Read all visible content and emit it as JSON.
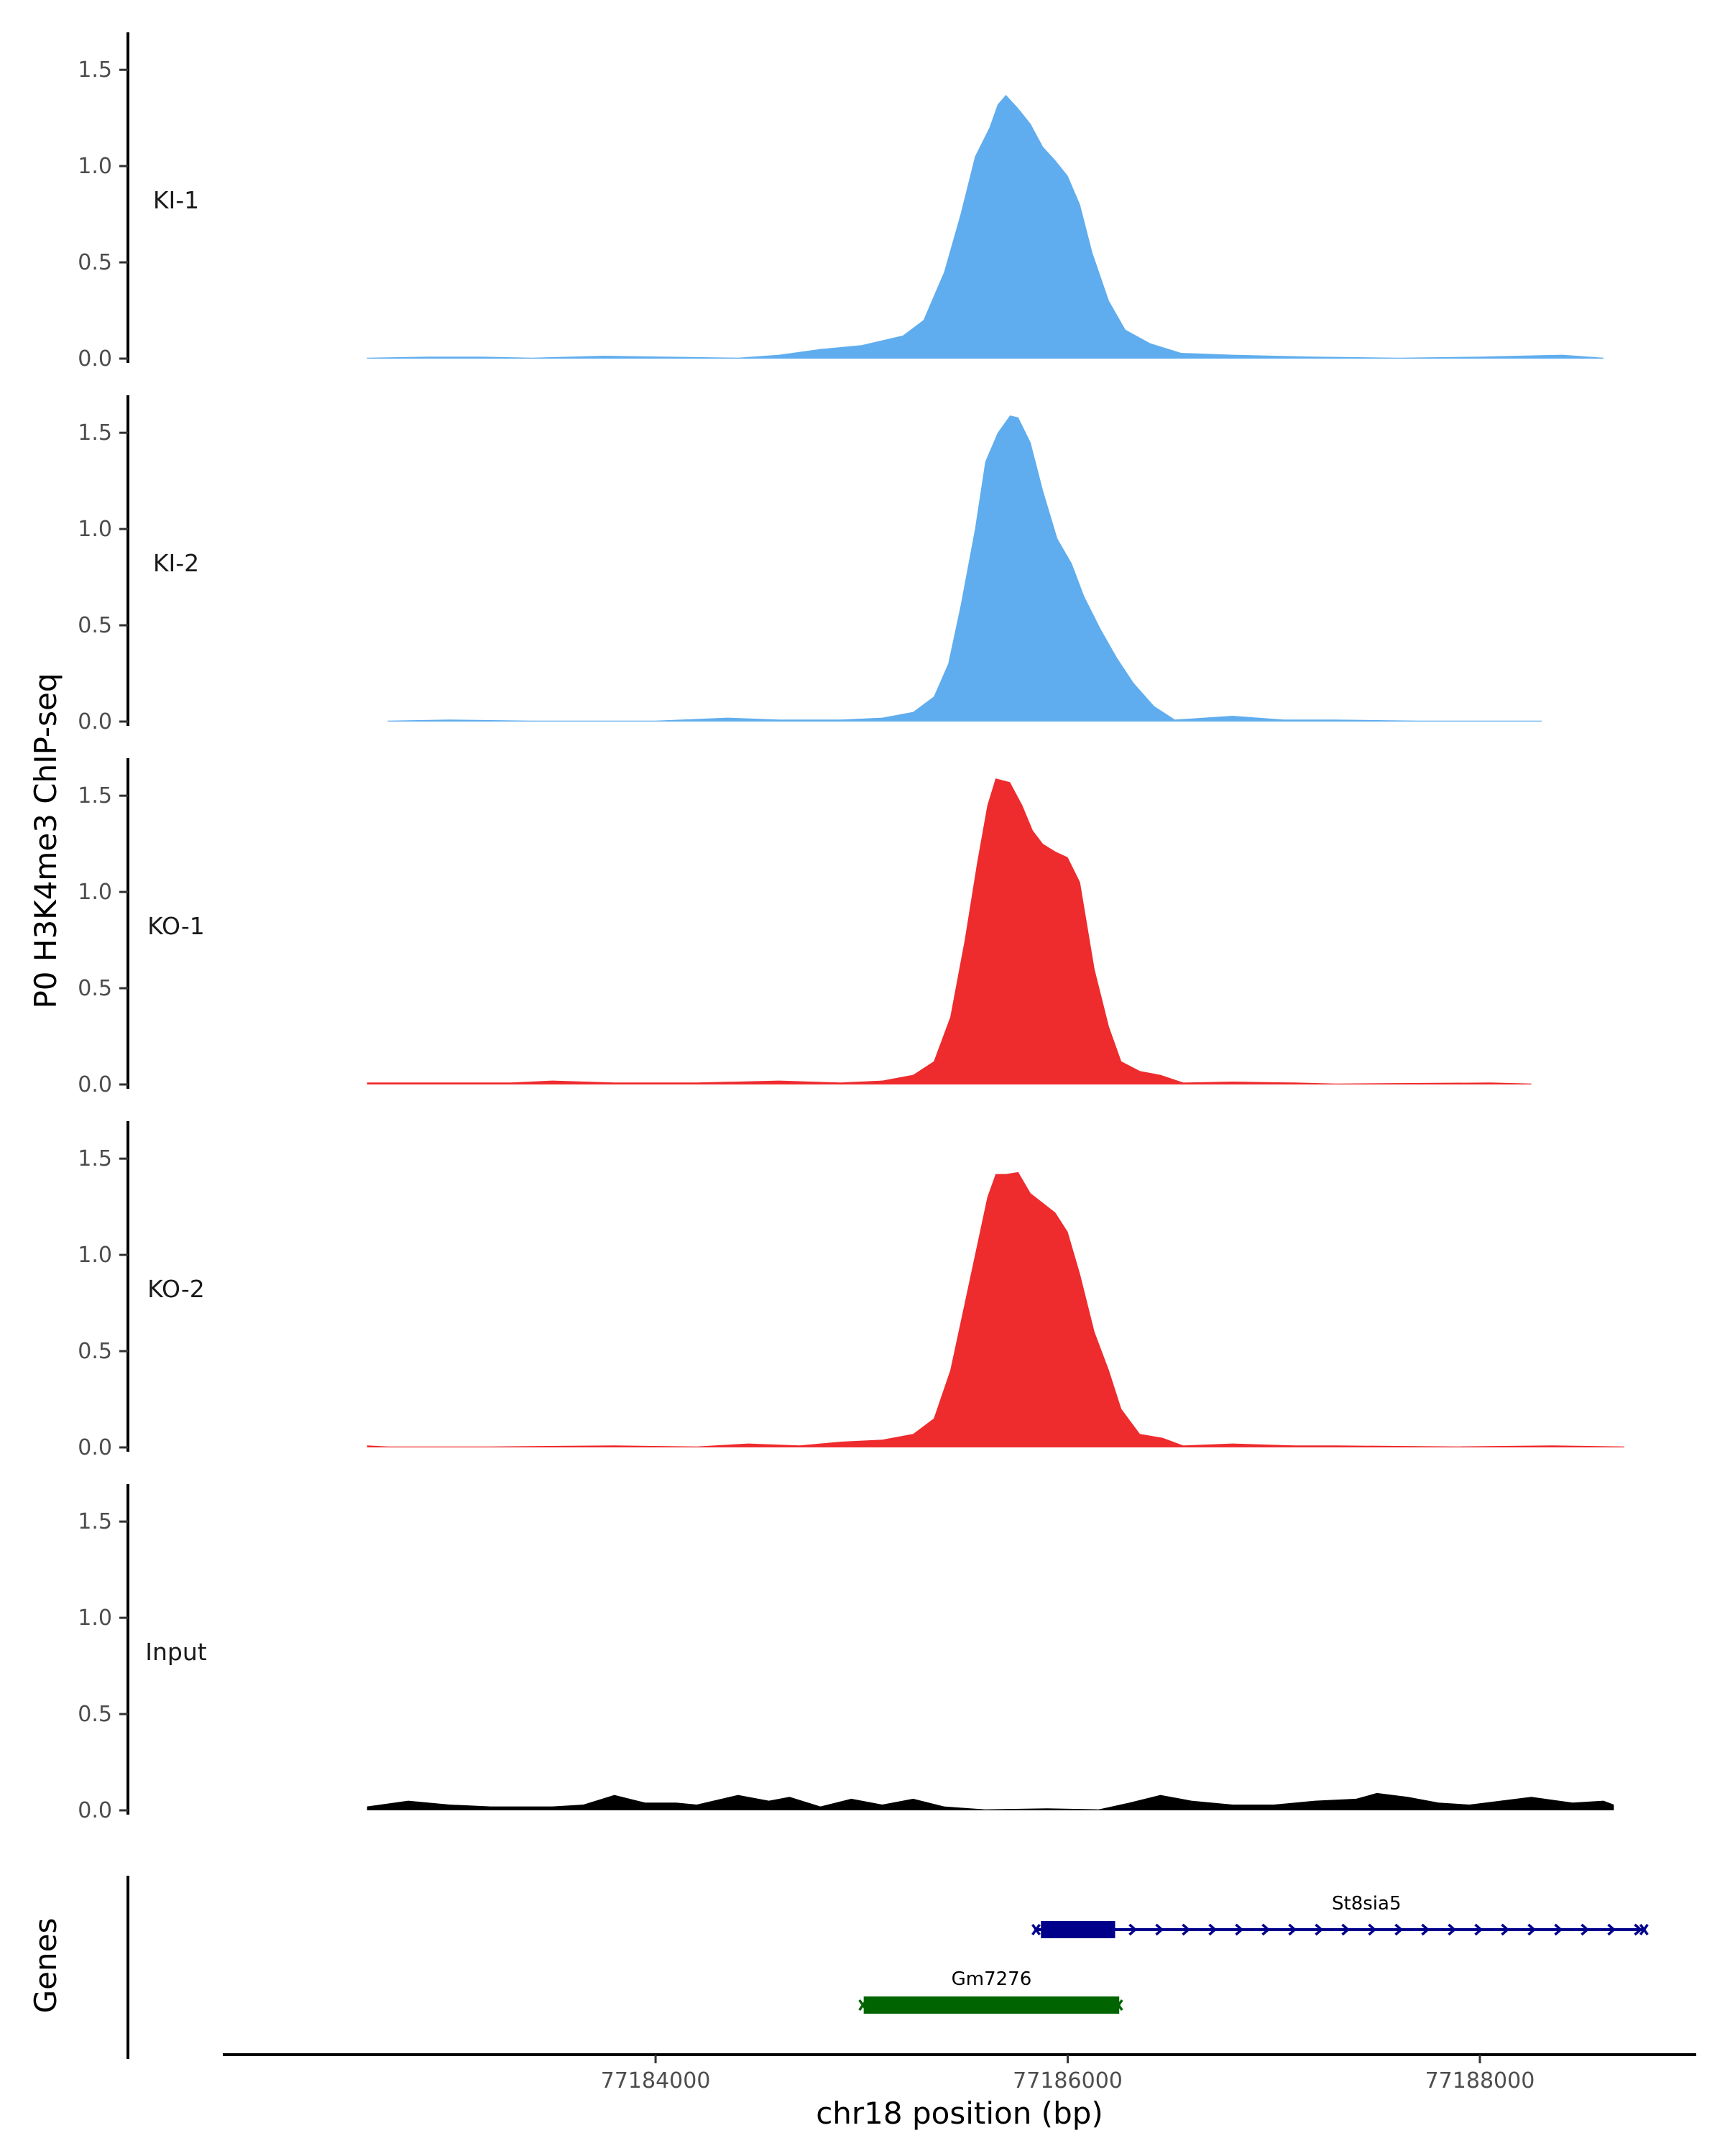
{
  "chart_data": {
    "type": "area",
    "y_title": "P0 H3K4me3 ChIP-seq",
    "x_title": "chr18 position (bp)",
    "genes_title": "Genes",
    "xlim": [
      77181900,
      77189050
    ],
    "ylim": [
      0,
      1.65
    ],
    "y_ticks": [
      0,
      0.5,
      1,
      1.5
    ],
    "y_tick_labels": [
      "0.0",
      "0.5",
      "1.0",
      "1.5"
    ],
    "x_ticks": [
      77184000,
      77186000,
      77188000
    ],
    "x_tick_labels": [
      "77184000",
      "77186000",
      "77188000"
    ],
    "colors": {
      "KI": "#5fadee",
      "KO": "#ee2b2d",
      "Input": "#000000",
      "St8sia5": "#00008b",
      "Gm7276": "#006400"
    },
    "tracks": [
      {
        "name": "KI-1",
        "color": "#5fadee",
        "points": [
          [
            77182600,
            0.005
          ],
          [
            77182900,
            0.01
          ],
          [
            77183150,
            0.01
          ],
          [
            77183400,
            0.005
          ],
          [
            77183750,
            0.015
          ],
          [
            77184050,
            0.01
          ],
          [
            77184400,
            0.005
          ],
          [
            77184600,
            0.02
          ],
          [
            77184800,
            0.05
          ],
          [
            77185000,
            0.07
          ],
          [
            77185200,
            0.12
          ],
          [
            77185300,
            0.2
          ],
          [
            77185400,
            0.45
          ],
          [
            77185480,
            0.75
          ],
          [
            77185550,
            1.05
          ],
          [
            77185620,
            1.2
          ],
          [
            77185660,
            1.32
          ],
          [
            77185700,
            1.37
          ],
          [
            77185760,
            1.3
          ],
          [
            77185820,
            1.22
          ],
          [
            77185880,
            1.1
          ],
          [
            77185940,
            1.03
          ],
          [
            77186000,
            0.95
          ],
          [
            77186060,
            0.8
          ],
          [
            77186120,
            0.55
          ],
          [
            77186200,
            0.3
          ],
          [
            77186280,
            0.15
          ],
          [
            77186400,
            0.08
          ],
          [
            77186550,
            0.03
          ],
          [
            77186800,
            0.02
          ],
          [
            77187200,
            0.01
          ],
          [
            77187600,
            0.005
          ],
          [
            77188000,
            0.01
          ],
          [
            77188400,
            0.02
          ],
          [
            77188600,
            0.005
          ]
        ]
      },
      {
        "name": "KI-2",
        "color": "#5fadee",
        "points": [
          [
            77182700,
            0.005
          ],
          [
            77183000,
            0.01
          ],
          [
            77183400,
            0.005
          ],
          [
            77183700,
            0.005
          ],
          [
            77184000,
            0.005
          ],
          [
            77184350,
            0.02
          ],
          [
            77184600,
            0.01
          ],
          [
            77184900,
            0.01
          ],
          [
            77185100,
            0.02
          ],
          [
            77185250,
            0.05
          ],
          [
            77185350,
            0.13
          ],
          [
            77185420,
            0.3
          ],
          [
            77185480,
            0.6
          ],
          [
            77185550,
            1.0
          ],
          [
            77185600,
            1.35
          ],
          [
            77185660,
            1.5
          ],
          [
            77185720,
            1.59
          ],
          [
            77185760,
            1.58
          ],
          [
            77185820,
            1.45
          ],
          [
            77185880,
            1.2
          ],
          [
            77185950,
            0.95
          ],
          [
            77186020,
            0.82
          ],
          [
            77186080,
            0.65
          ],
          [
            77186160,
            0.48
          ],
          [
            77186240,
            0.33
          ],
          [
            77186320,
            0.2
          ],
          [
            77186420,
            0.08
          ],
          [
            77186520,
            0.01
          ],
          [
            77186800,
            0.03
          ],
          [
            77187050,
            0.01
          ],
          [
            77187300,
            0.01
          ],
          [
            77187700,
            0.005
          ],
          [
            77188100,
            0.005
          ],
          [
            77188300,
            0.005
          ]
        ]
      },
      {
        "name": "KO-1",
        "color": "#ee2b2d",
        "points": [
          [
            77182600,
            0.01
          ],
          [
            77182900,
            0.01
          ],
          [
            77183300,
            0.01
          ],
          [
            77183500,
            0.02
          ],
          [
            77183800,
            0.01
          ],
          [
            77184200,
            0.01
          ],
          [
            77184600,
            0.02
          ],
          [
            77184900,
            0.01
          ],
          [
            77185100,
            0.02
          ],
          [
            77185250,
            0.05
          ],
          [
            77185350,
            0.12
          ],
          [
            77185430,
            0.35
          ],
          [
            77185500,
            0.75
          ],
          [
            77185560,
            1.15
          ],
          [
            77185610,
            1.45
          ],
          [
            77185650,
            1.59
          ],
          [
            77185720,
            1.57
          ],
          [
            77185780,
            1.45
          ],
          [
            77185830,
            1.32
          ],
          [
            77185880,
            1.25
          ],
          [
            77185940,
            1.21
          ],
          [
            77186000,
            1.18
          ],
          [
            77186060,
            1.05
          ],
          [
            77186130,
            0.6
          ],
          [
            77186200,
            0.3
          ],
          [
            77186260,
            0.12
          ],
          [
            77186350,
            0.07
          ],
          [
            77186450,
            0.05
          ],
          [
            77186560,
            0.01
          ],
          [
            77186800,
            0.015
          ],
          [
            77187100,
            0.01
          ],
          [
            77187300,
            0.005
          ],
          [
            77188050,
            0.01
          ],
          [
            77188250,
            0.005
          ]
        ]
      },
      {
        "name": "KO-2",
        "color": "#ee2b2d",
        "points": [
          [
            77182600,
            0.01
          ],
          [
            77182700,
            0.005
          ],
          [
            77183200,
            0.005
          ],
          [
            77183800,
            0.01
          ],
          [
            77184200,
            0.005
          ],
          [
            77184450,
            0.02
          ],
          [
            77184700,
            0.01
          ],
          [
            77184900,
            0.03
          ],
          [
            77185100,
            0.04
          ],
          [
            77185250,
            0.07
          ],
          [
            77185350,
            0.15
          ],
          [
            77185430,
            0.4
          ],
          [
            77185500,
            0.75
          ],
          [
            77185560,
            1.05
          ],
          [
            77185610,
            1.3
          ],
          [
            77185650,
            1.42
          ],
          [
            77185700,
            1.42
          ],
          [
            77185760,
            1.43
          ],
          [
            77185820,
            1.32
          ],
          [
            77185880,
            1.27
          ],
          [
            77185940,
            1.22
          ],
          [
            77186000,
            1.12
          ],
          [
            77186060,
            0.9
          ],
          [
            77186130,
            0.6
          ],
          [
            77186200,
            0.4
          ],
          [
            77186260,
            0.2
          ],
          [
            77186350,
            0.07
          ],
          [
            77186460,
            0.05
          ],
          [
            77186560,
            0.01
          ],
          [
            77186800,
            0.02
          ],
          [
            77187100,
            0.01
          ],
          [
            77187300,
            0.01
          ],
          [
            77187900,
            0.005
          ],
          [
            77188350,
            0.01
          ],
          [
            77188700,
            0.005
          ]
        ]
      },
      {
        "name": "Input",
        "color": "#000000",
        "points": [
          [
            77182600,
            0.02
          ],
          [
            77182800,
            0.05
          ],
          [
            77183000,
            0.03
          ],
          [
            77183200,
            0.02
          ],
          [
            77183500,
            0.02
          ],
          [
            77183650,
            0.03
          ],
          [
            77183800,
            0.08
          ],
          [
            77183950,
            0.04
          ],
          [
            77184100,
            0.04
          ],
          [
            77184200,
            0.03
          ],
          [
            77184400,
            0.08
          ],
          [
            77184550,
            0.05
          ],
          [
            77184650,
            0.07
          ],
          [
            77184800,
            0.02
          ],
          [
            77184950,
            0.06
          ],
          [
            77185100,
            0.03
          ],
          [
            77185250,
            0.06
          ],
          [
            77185400,
            0.02
          ],
          [
            77185600,
            0.005
          ],
          [
            77185900,
            0.01
          ],
          [
            77186150,
            0.005
          ],
          [
            77186300,
            0.04
          ],
          [
            77186450,
            0.08
          ],
          [
            77186600,
            0.05
          ],
          [
            77186800,
            0.03
          ],
          [
            77187000,
            0.03
          ],
          [
            77187200,
            0.05
          ],
          [
            77187400,
            0.06
          ],
          [
            77187500,
            0.09
          ],
          [
            77187650,
            0.07
          ],
          [
            77187800,
            0.04
          ],
          [
            77187950,
            0.03
          ],
          [
            77188100,
            0.05
          ],
          [
            77188250,
            0.07
          ],
          [
            77188450,
            0.04
          ],
          [
            77188600,
            0.05
          ],
          [
            77188650,
            0.03
          ]
        ]
      }
    ],
    "genes": [
      {
        "name": "St8sia5",
        "strand": "+",
        "row": 1,
        "start": 77185850,
        "end": 77188800,
        "thick_start": 77185870,
        "thick_end": 77186230,
        "color": "#00008b"
      },
      {
        "name": "Gm7276",
        "strand": "-",
        "row": 2,
        "start": 77185010,
        "end": 77186250,
        "thick_start": 77185010,
        "thick_end": 77186250,
        "color": "#006400"
      }
    ]
  }
}
